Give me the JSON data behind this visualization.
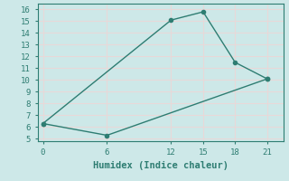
{
  "line1_x": [
    0,
    12,
    15,
    18,
    21
  ],
  "line1_y": [
    6.3,
    15.1,
    15.8,
    11.5,
    10.1
  ],
  "line2_x": [
    0,
    6,
    21
  ],
  "line2_y": [
    6.3,
    5.3,
    10.1
  ],
  "line_color": "#2e7d72",
  "bg_color": "#cde8e8",
  "grid_color": "#e8d8d8",
  "xlabel": "Humidex (Indice chaleur)",
  "xlim": [
    -0.5,
    22.5
  ],
  "ylim": [
    4.8,
    16.5
  ],
  "xticks": [
    0,
    6,
    12,
    15,
    18,
    21
  ],
  "yticks": [
    5,
    6,
    7,
    8,
    9,
    10,
    11,
    12,
    13,
    14,
    15,
    16
  ],
  "label_fontsize": 7.5,
  "tick_fontsize": 6.5,
  "marker_size": 3,
  "line_width": 1.0
}
